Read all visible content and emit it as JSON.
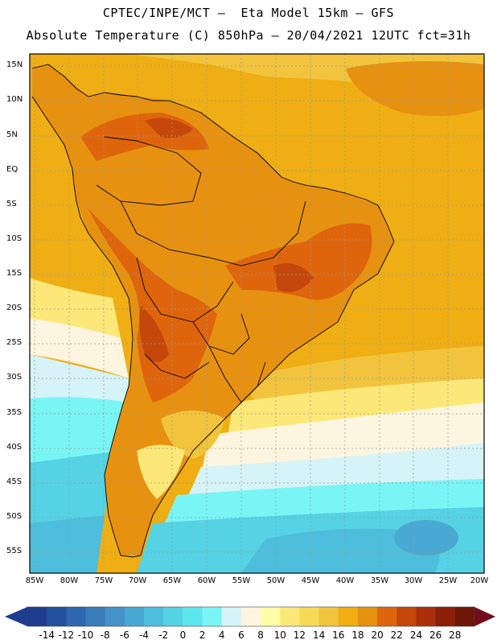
{
  "title_line1": "CPTEC/INPE/MCT –  Eta Model 15km – GFS",
  "title_line2": "Absolute Temperature (C) 850hPa – 20/04/2021 12UTC fct=31h",
  "lat_labels": [
    "15N",
    "10N",
    "5N",
    "EQ",
    "5S",
    "10S",
    "15S",
    "20S",
    "25S",
    "30S",
    "35S",
    "40S",
    "45S",
    "50S",
    "55S"
  ],
  "lon_labels": [
    "85W",
    "80W",
    "75W",
    "70W",
    "65W",
    "60W",
    "55W",
    "50W",
    "45W",
    "40W",
    "35W",
    "30W",
    "25W",
    "20W"
  ],
  "colorbar": {
    "labels": [
      "-14",
      "-12",
      "-10",
      "-8",
      "-6",
      "-4",
      "-2",
      "0",
      "2",
      "4",
      "6",
      "8",
      "10",
      "12",
      "14",
      "16",
      "18",
      "20",
      "22",
      "24",
      "26",
      "28"
    ],
    "colors": [
      "#1f3d8f",
      "#23509f",
      "#2d67ad",
      "#3a7cba",
      "#4592c6",
      "#4aa9d2",
      "#4dbedb",
      "#55d2e3",
      "#5ee6ee",
      "#7af5f6",
      "#d6f3f8",
      "#fdf5df",
      "#fffda8",
      "#fce878",
      "#f8d957",
      "#f2c43d",
      "#efae13",
      "#e79110",
      "#de650c",
      "#c4470b",
      "#a9300a",
      "#8c1f07",
      "#6e1707"
    ],
    "extend_low_color": "#1f3d8f",
    "extend_high_color": "#730d1c"
  },
  "map": {
    "region": "South America",
    "lat_range": [
      -58,
      17
    ],
    "lon_range": [
      -86,
      -20
    ],
    "ocean_base_color": "#efae13"
  }
}
